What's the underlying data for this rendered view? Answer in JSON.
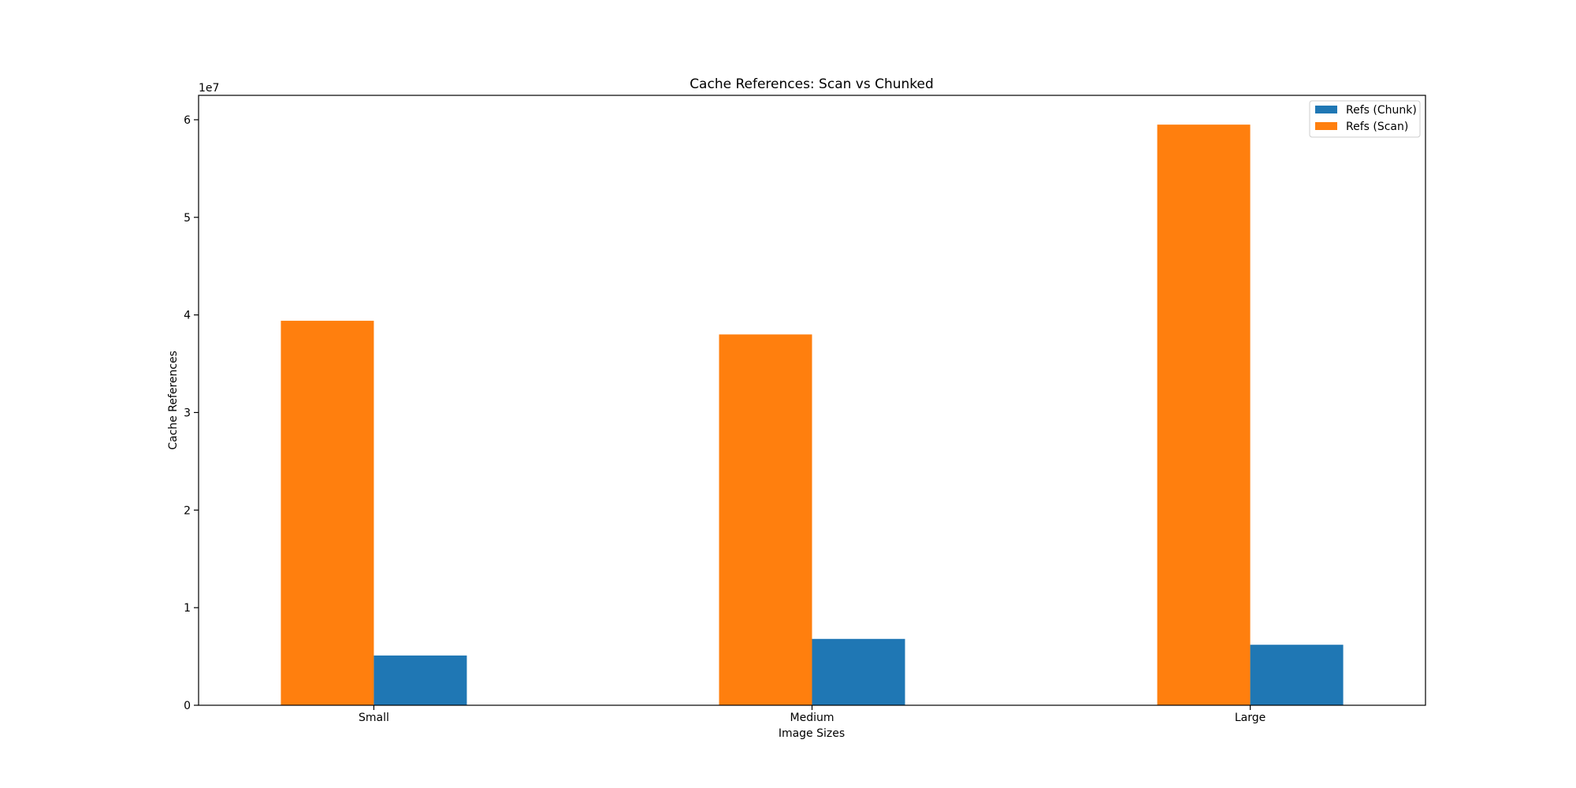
{
  "chart_data": {
    "type": "bar",
    "title": "Cache References: Scan vs Chunked",
    "xlabel": "Image Sizes",
    "ylabel": "Cache References",
    "y_offset_label": "1e7",
    "categories": [
      "Small",
      "Medium",
      "Large"
    ],
    "ylim": [
      0,
      62500000
    ],
    "yticks": [
      0,
      10000000,
      20000000,
      30000000,
      40000000,
      50000000,
      60000000
    ],
    "ytick_labels": [
      "0",
      "1",
      "2",
      "3",
      "4",
      "5",
      "6"
    ],
    "grid": false,
    "legend_position": "top-right",
    "series": [
      {
        "name": "Refs (Chunk)",
        "color": "#1f77b4",
        "values": [
          5100000,
          6800000,
          6200000
        ]
      },
      {
        "name": "Refs (Scan)",
        "color": "#ff7f0e",
        "values": [
          39400000,
          38000000,
          59500000
        ]
      }
    ]
  }
}
